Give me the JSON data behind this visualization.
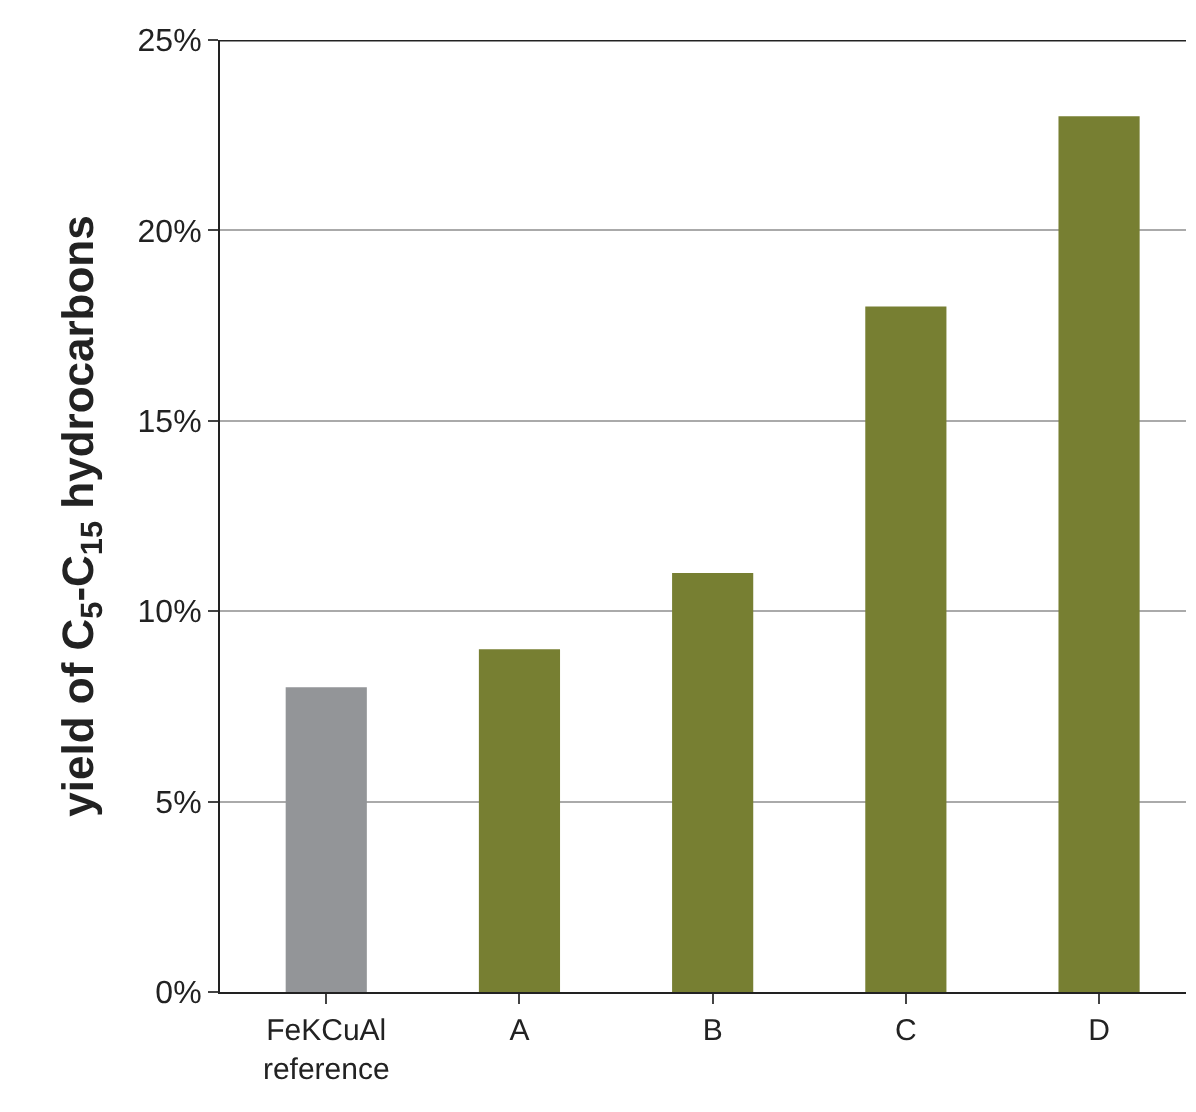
{
  "chart_data": {
    "type": "bar",
    "categories": [
      "FeKCuAl\nreference",
      "A",
      "B",
      "C",
      "D"
    ],
    "values": [
      8,
      9,
      11,
      18,
      23
    ],
    "colors": [
      "#939598",
      "#777f32",
      "#777f32",
      "#777f32",
      "#777f32"
    ],
    "ylabel": "yield of C$_{5}$-C$_{15}$ hydrocarbons",
    "ylim": [
      0,
      25
    ],
    "yticks": [
      {
        "value": 0,
        "label": "0%"
      },
      {
        "value": 5,
        "label": "5%"
      },
      {
        "value": 10,
        "label": "10%"
      },
      {
        "value": 15,
        "label": "15%"
      },
      {
        "value": 20,
        "label": "20%"
      },
      {
        "value": 25,
        "label": "25%"
      }
    ],
    "grid": "y"
  }
}
